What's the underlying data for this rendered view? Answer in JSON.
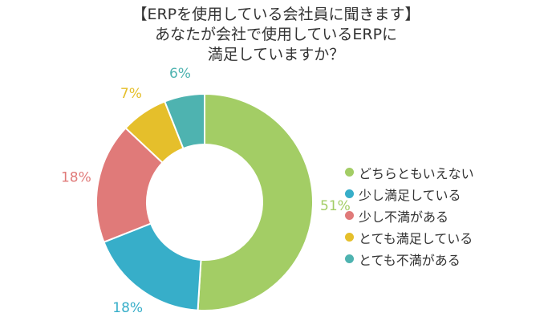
{
  "title_lines": [
    "【ERPを使用している会社員に聞きます】",
    "あなたが会社で使用しているERPに",
    "満足していますか？"
  ],
  "chart_data": {
    "type": "pie",
    "donut": true,
    "categories": [
      "どちらともいえない",
      "少し満足している",
      "少し不満がある",
      "とても満足している",
      "とても不満がある"
    ],
    "values": [
      51,
      18,
      18,
      7,
      6
    ],
    "value_labels": [
      "51%",
      "18%",
      "18%",
      "7%",
      "6%"
    ],
    "colors": [
      "#a3cd65",
      "#37aec9",
      "#e07a79",
      "#e5bf2b",
      "#4eb3b0"
    ],
    "legend_position": "right"
  }
}
